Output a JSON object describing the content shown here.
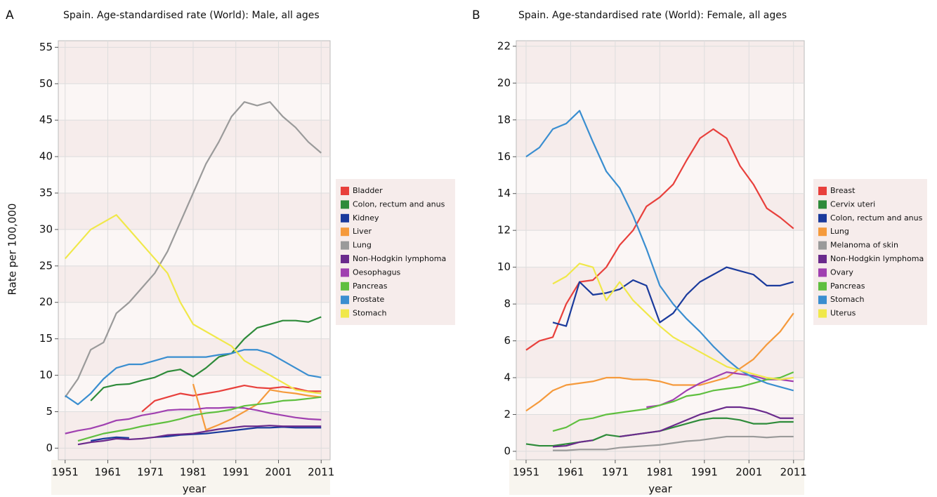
{
  "chart_data": [
    {
      "type": "line",
      "label": "A",
      "title": "Spain. Age-standardised rate (World): Male, all ages",
      "y_label": "Rate per 100,000",
      "x_label": "year",
      "x": [
        1951,
        1954,
        1957,
        1960,
        1963,
        1966,
        1969,
        1972,
        1975,
        1978,
        1981,
        1984,
        1987,
        1990,
        1993,
        1996,
        1999,
        2002,
        2005,
        2008,
        2011
      ],
      "xlim": [
        1949.4,
        2013.1
      ],
      "xticks": [
        1951,
        1961,
        1971,
        1981,
        1991,
        2001,
        2011
      ],
      "ylim": [
        -1.6,
        55.9
      ],
      "yticks": [
        0,
        5,
        10,
        15,
        20,
        25,
        30,
        35,
        40,
        45,
        50,
        55
      ],
      "grid": true,
      "series": [
        {
          "name": "Bladder",
          "color": "#e8403c",
          "values": [
            null,
            null,
            null,
            null,
            null,
            null,
            5,
            6.5,
            7,
            7.5,
            7.2,
            7.5,
            7.8,
            8.2,
            8.6,
            8.3,
            8.2,
            8.4,
            8.2,
            7.8,
            7.8
          ]
        },
        {
          "name": "Colon, rectum and anus",
          "color": "#2e8b3a",
          "values": [
            null,
            null,
            6.5,
            8.3,
            8.7,
            8.8,
            9.3,
            9.7,
            10.5,
            10.8,
            9.8,
            11,
            12.5,
            13,
            15,
            16.5,
            17,
            17.5,
            17.5,
            17.3,
            18
          ]
        },
        {
          "name": "Kidney",
          "color": "#1a3a9c",
          "values": [
            null,
            null,
            1,
            1.3,
            1.5,
            1.4,
            null,
            1.5,
            1.6,
            1.8,
            1.9,
            2,
            2.2,
            2.4,
            2.6,
            2.8,
            2.8,
            2.9,
            2.8,
            2.8,
            2.8
          ]
        },
        {
          "name": "Liver",
          "color": "#f59a3c",
          "values": [
            null,
            null,
            null,
            null,
            null,
            null,
            null,
            null,
            null,
            null,
            8.8,
            2.5,
            3.2,
            4,
            5,
            6,
            8,
            7.7,
            7.5,
            7.2,
            7
          ]
        },
        {
          "name": "Lung",
          "color": "#9a9a9a",
          "values": [
            7,
            9.5,
            13.5,
            14.5,
            18.5,
            20,
            22,
            24,
            27,
            31,
            35,
            39,
            42,
            45.5,
            47.5,
            47,
            47.5,
            45.5,
            44,
            42,
            40.5
          ]
        },
        {
          "name": "Non-Hodgkin lymphoma",
          "color": "#6a2a8c",
          "values": [
            null,
            0.5,
            0.8,
            1,
            1.3,
            1.2,
            1.3,
            1.5,
            1.8,
            1.9,
            2,
            2.3,
            2.6,
            2.8,
            3,
            3,
            3.1,
            3,
            3,
            3,
            3
          ]
        },
        {
          "name": "Oesophagus",
          "color": "#a040b0",
          "values": [
            2,
            2.4,
            2.7,
            3.2,
            3.8,
            4,
            4.5,
            4.8,
            5.2,
            5.3,
            5.3,
            5.5,
            5.5,
            5.6,
            5.5,
            5.2,
            4.8,
            4.5,
            4.2,
            4,
            3.9
          ]
        },
        {
          "name": "Pancreas",
          "color": "#5fbf3f",
          "values": [
            null,
            1,
            1.5,
            2,
            2.3,
            2.6,
            3,
            3.3,
            3.6,
            4,
            4.5,
            4.8,
            5,
            5.3,
            5.8,
            6,
            6.2,
            6.5,
            6.6,
            6.8,
            7
          ]
        },
        {
          "name": "Prostate",
          "color": "#3a8ed0",
          "values": [
            7.2,
            6,
            7.5,
            9.5,
            11,
            11.5,
            11.5,
            12,
            12.5,
            12.5,
            12.5,
            12.5,
            12.8,
            13,
            13.5,
            13.5,
            13,
            12,
            11,
            10,
            9.7
          ]
        },
        {
          "name": "Stomach",
          "color": "#f0e84a",
          "values": [
            26,
            28,
            30,
            31,
            32,
            30,
            28,
            26,
            24,
            20,
            17,
            16,
            15,
            14,
            12,
            11,
            10,
            9,
            8,
            7.7,
            7.5
          ]
        }
      ]
    },
    {
      "type": "line",
      "label": "B",
      "title": "Spain. Age-standardised rate (World): Female, all ages",
      "x_label": "year",
      "x": [
        1951,
        1954,
        1957,
        1960,
        1963,
        1966,
        1969,
        1972,
        1975,
        1978,
        1981,
        1984,
        1987,
        1990,
        1993,
        1996,
        1999,
        2002,
        2005,
        2008,
        2011
      ],
      "xlim": [
        1948.8,
        2013.4
      ],
      "xticks": [
        1951,
        1961,
        1971,
        1981,
        1991,
        2001,
        2011
      ],
      "ylim": [
        -0.46,
        22.3
      ],
      "yticks": [
        0,
        2,
        4,
        6,
        8,
        10,
        12,
        14,
        16,
        18,
        20,
        22
      ],
      "grid": true,
      "series": [
        {
          "name": "Breast",
          "color": "#e8403c",
          "values": [
            5.5,
            6,
            6.2,
            8,
            9.2,
            9.3,
            10,
            11.2,
            12,
            13.3,
            13.8,
            14.5,
            15.8,
            17,
            17.5,
            17,
            15.5,
            14.5,
            13.2,
            12.7,
            12.1
          ]
        },
        {
          "name": "Cervix uteri",
          "color": "#2e8b3a",
          "values": [
            0.4,
            0.3,
            0.3,
            0.4,
            0.5,
            0.6,
            0.9,
            0.8,
            0.9,
            1,
            1.1,
            1.3,
            1.5,
            1.7,
            1.8,
            1.8,
            1.7,
            1.5,
            1.5,
            1.6,
            1.6
          ]
        },
        {
          "name": "Colon, rectum and anus",
          "color": "#1a3a9c",
          "values": [
            null,
            null,
            7,
            6.8,
            9.2,
            8.5,
            8.6,
            8.8,
            9.3,
            9,
            7,
            7.5,
            8.5,
            9.2,
            9.6,
            10,
            9.8,
            9.6,
            9,
            9,
            9.2
          ]
        },
        {
          "name": "Lung",
          "color": "#f59a3c",
          "values": [
            2.2,
            2.7,
            3.3,
            3.6,
            3.7,
            3.8,
            4,
            4,
            3.9,
            3.9,
            3.8,
            3.6,
            3.6,
            3.6,
            3.8,
            4,
            4.5,
            5,
            5.8,
            6.5,
            7.5
          ]
        },
        {
          "name": "Melanoma of skin",
          "color": "#9a9a9a",
          "values": [
            null,
            null,
            0.05,
            0.05,
            0.1,
            0.1,
            0.1,
            0.2,
            0.25,
            0.3,
            0.35,
            0.45,
            0.55,
            0.6,
            0.7,
            0.8,
            0.8,
            0.8,
            0.75,
            0.8,
            0.8
          ]
        },
        {
          "name": "Non-Hodgkin lymphoma",
          "color": "#6a2a8c",
          "values": [
            null,
            null,
            0.25,
            0.3,
            0.5,
            0.6,
            null,
            0.8,
            0.9,
            1,
            1.1,
            1.4,
            1.7,
            2,
            2.2,
            2.4,
            2.4,
            2.3,
            2.1,
            1.8,
            1.8
          ]
        },
        {
          "name": "Ovary",
          "color": "#a040b0",
          "values": [
            null,
            null,
            null,
            null,
            null,
            null,
            null,
            null,
            null,
            2.4,
            2.5,
            2.8,
            3.3,
            3.7,
            4,
            4.3,
            4.2,
            4.1,
            3.9,
            3.9,
            3.8
          ]
        },
        {
          "name": "Pancreas",
          "color": "#5fbf3f",
          "values": [
            null,
            null,
            1.1,
            1.3,
            1.7,
            1.8,
            2,
            2.1,
            2.2,
            2.3,
            2.5,
            2.7,
            3,
            3.1,
            3.3,
            3.4,
            3.5,
            3.7,
            3.9,
            4,
            4.3
          ]
        },
        {
          "name": "Stomach",
          "color": "#3a8ed0",
          "values": [
            16,
            16.5,
            17.5,
            17.8,
            18.5,
            16.8,
            15.2,
            14.3,
            12.8,
            11,
            9,
            8,
            7.2,
            6.5,
            5.7,
            5,
            4.4,
            4,
            3.7,
            3.5,
            3.3
          ]
        },
        {
          "name": "Uterus",
          "color": "#f0e84a",
          "values": [
            null,
            null,
            9.1,
            9.5,
            10.2,
            10,
            8.2,
            9.2,
            8.2,
            7.5,
            6.8,
            6.2,
            5.8,
            5.4,
            5,
            4.6,
            4.4,
            4.2,
            4,
            3.9,
            4
          ]
        }
      ]
    }
  ]
}
